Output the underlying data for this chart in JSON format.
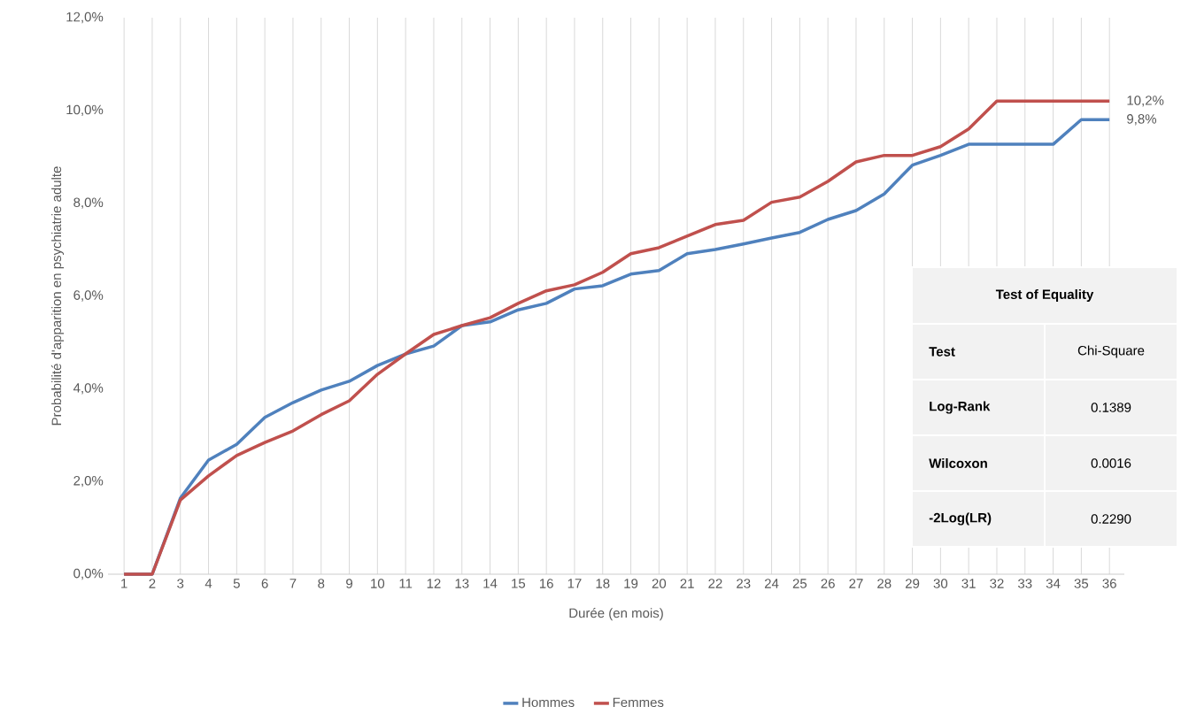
{
  "chart_data": {
    "type": "line",
    "xlabel": "Durée (en mois)",
    "ylabel": "Probabilité d'apparition en psychiatrie adulte",
    "categories": [
      "1",
      "2",
      "3",
      "4",
      "5",
      "6",
      "7",
      "8",
      "9",
      "10",
      "11",
      "12",
      "13",
      "14",
      "15",
      "16",
      "17",
      "18",
      "19",
      "20",
      "21",
      "22",
      "23",
      "24",
      "25",
      "26",
      "27",
      "28",
      "29",
      "30",
      "31",
      "32",
      "33",
      "34",
      "35",
      "36"
    ],
    "series": [
      {
        "name": "Hommes",
        "color": "#4f81bd",
        "values": [
          0,
          0,
          1.64,
          2.46,
          2.8,
          3.38,
          3.7,
          3.97,
          4.16,
          4.5,
          4.75,
          4.92,
          5.36,
          5.44,
          5.7,
          5.84,
          6.15,
          6.22,
          6.47,
          6.55,
          6.91,
          7.0,
          7.12,
          7.25,
          7.37,
          7.65,
          7.84,
          8.2,
          8.82,
          9.03,
          9.27,
          9.27,
          9.27,
          9.27,
          9.8,
          9.8
        ],
        "value_labels": [
          null,
          null,
          null,
          null,
          null,
          null,
          null,
          null,
          null,
          null,
          null,
          null,
          null,
          null,
          null,
          null,
          null,
          null,
          null,
          null,
          null,
          null,
          null,
          null,
          null,
          null,
          null,
          null,
          null,
          null,
          null,
          null,
          null,
          null,
          null,
          "9,8%"
        ]
      },
      {
        "name": "Femmes",
        "color": "#c0504d",
        "values": [
          0,
          0,
          1.6,
          2.12,
          2.56,
          2.84,
          3.09,
          3.44,
          3.74,
          4.31,
          4.75,
          5.17,
          5.36,
          5.53,
          5.84,
          6.11,
          6.24,
          6.51,
          6.91,
          7.04,
          7.29,
          7.54,
          7.63,
          8.02,
          8.13,
          8.47,
          8.89,
          9.03,
          9.03,
          9.22,
          9.6,
          10.2,
          10.2,
          10.2,
          10.2,
          10.2
        ],
        "value_labels": [
          null,
          null,
          null,
          null,
          null,
          null,
          null,
          null,
          null,
          null,
          null,
          null,
          null,
          null,
          null,
          null,
          null,
          null,
          null,
          null,
          null,
          null,
          null,
          null,
          null,
          null,
          null,
          null,
          null,
          null,
          null,
          null,
          null,
          null,
          null,
          "10,2%"
        ]
      }
    ],
    "ylim": [
      0,
      12
    ],
    "yticks": [
      {
        "value": 0,
        "label": "0,0%"
      },
      {
        "value": 2,
        "label": "2,0%"
      },
      {
        "value": 4,
        "label": "4,0%"
      },
      {
        "value": 6,
        "label": "6,0%"
      },
      {
        "value": 8,
        "label": "8,0%"
      },
      {
        "value": 10,
        "label": "10,0%"
      },
      {
        "value": 12,
        "label": "12,0%"
      }
    ],
    "grid": "x",
    "legend": "bottom",
    "marker": "none",
    "line_style": "solid",
    "annotations": [
      "Test of Equality",
      "Test",
      "Chi-Square",
      "Log-Rank",
      "0.1389",
      "Wilcoxon",
      "0.0016",
      "-2Log(LR)",
      "0.2290"
    ]
  }
}
